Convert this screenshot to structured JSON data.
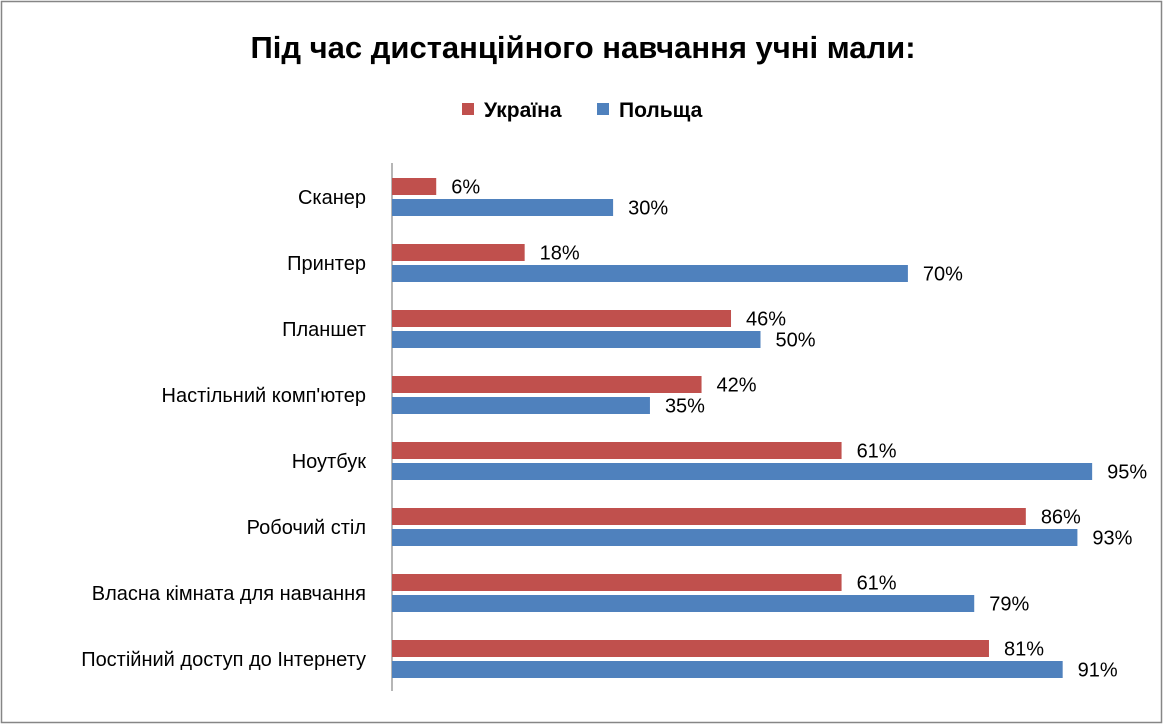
{
  "chart_data": {
    "type": "bar",
    "orientation": "horizontal",
    "title": "Під час дистанційного навчання учні мали:",
    "legend_position": "top",
    "grid": false,
    "xlim": [
      0,
      100
    ],
    "value_suffix": "%",
    "categories": [
      "Сканер",
      "Принтер",
      "Планшет",
      "Настільний комп'ютер",
      "Ноутбук",
      "Робочий стіл",
      "Власна кімната для навчання",
      "Постійний доступ до Інтернету"
    ],
    "series": [
      {
        "name": "Україна",
        "color": "#C0504D",
        "values": [
          6,
          18,
          46,
          42,
          61,
          86,
          61,
          81
        ]
      },
      {
        "name": "Польща",
        "color": "#4F81BD",
        "values": [
          30,
          70,
          50,
          35,
          95,
          93,
          79,
          91
        ]
      }
    ]
  }
}
